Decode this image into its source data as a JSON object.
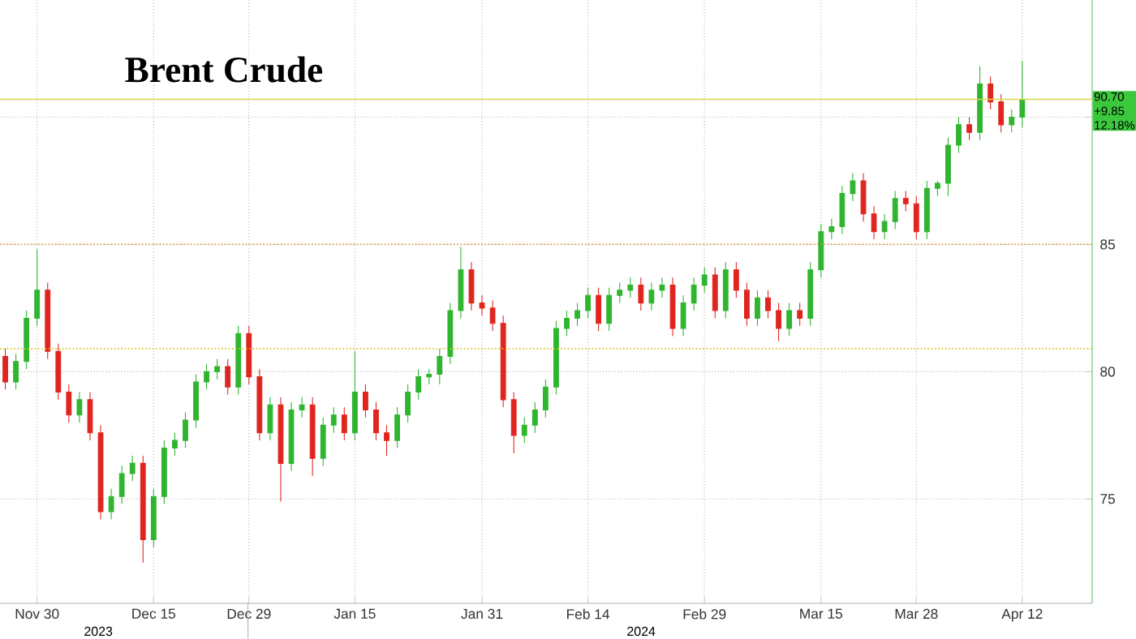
{
  "chart_data": {
    "type": "candlestick",
    "title": "Brent Crude",
    "categories": [
      null,
      null,
      null,
      "Nov 30",
      null,
      null,
      null,
      null,
      null,
      null,
      null,
      null,
      null,
      null,
      "Dec 15",
      null,
      null,
      null,
      null,
      null,
      null,
      null,
      null,
      "Dec 29",
      null,
      null,
      null,
      null,
      null,
      null,
      null,
      null,
      null,
      "Jan 15",
      null,
      null,
      null,
      null,
      null,
      null,
      null,
      null,
      null,
      null,
      null,
      "Jan 31",
      null,
      null,
      null,
      null,
      null,
      null,
      null,
      null,
      null,
      "Feb 14",
      null,
      null,
      null,
      null,
      null,
      null,
      null,
      null,
      null,
      null,
      "Feb 29",
      null,
      null,
      null,
      null,
      null,
      null,
      null,
      null,
      null,
      null,
      "Mar 15",
      null,
      null,
      null,
      null,
      null,
      null,
      null,
      null,
      "Mar 28",
      null,
      null,
      null,
      null,
      null,
      null,
      null,
      null,
      null,
      "Apr 12"
    ],
    "ohlc": [
      [
        80.6,
        80.9,
        79.3,
        79.6
      ],
      [
        79.6,
        80.7,
        79.3,
        80.4
      ],
      [
        80.4,
        82.4,
        80.1,
        82.1
      ],
      [
        82.1,
        84.8,
        81.8,
        83.2
      ],
      [
        83.2,
        83.5,
        80.5,
        80.8
      ],
      [
        80.8,
        81.1,
        78.9,
        79.2
      ],
      [
        79.2,
        79.5,
        78.0,
        78.3
      ],
      [
        78.3,
        79.2,
        78.0,
        78.9
      ],
      [
        78.9,
        79.2,
        77.3,
        77.6
      ],
      [
        77.6,
        77.9,
        74.2,
        74.5
      ],
      [
        74.5,
        75.4,
        74.2,
        75.1
      ],
      [
        75.1,
        76.3,
        74.8,
        76.0
      ],
      [
        76.0,
        76.7,
        75.7,
        76.4
      ],
      [
        76.4,
        76.7,
        72.5,
        73.4
      ],
      [
        73.4,
        75.4,
        73.1,
        75.1
      ],
      [
        75.1,
        77.3,
        74.8,
        77.0
      ],
      [
        77.0,
        77.6,
        76.7,
        77.3
      ],
      [
        77.3,
        78.4,
        77.0,
        78.1
      ],
      [
        78.1,
        79.9,
        77.8,
        79.6
      ],
      [
        79.6,
        80.3,
        79.3,
        80.0
      ],
      [
        80.0,
        80.5,
        79.7,
        80.2
      ],
      [
        80.2,
        80.5,
        79.1,
        79.4
      ],
      [
        79.4,
        81.8,
        79.1,
        81.5
      ],
      [
        81.5,
        81.8,
        79.5,
        79.8
      ],
      [
        79.8,
        80.1,
        77.3,
        77.6
      ],
      [
        77.6,
        79.0,
        77.3,
        78.7
      ],
      [
        78.7,
        79.0,
        74.9,
        76.4
      ],
      [
        76.4,
        78.8,
        76.1,
        78.5
      ],
      [
        78.5,
        79.0,
        78.2,
        78.7
      ],
      [
        78.7,
        79.0,
        75.9,
        76.6
      ],
      [
        76.6,
        78.2,
        76.3,
        77.9
      ],
      [
        77.9,
        78.6,
        77.6,
        78.3
      ],
      [
        78.3,
        78.6,
        77.3,
        77.6
      ],
      [
        77.6,
        80.8,
        77.3,
        79.2
      ],
      [
        79.2,
        79.5,
        78.2,
        78.5
      ],
      [
        78.5,
        78.8,
        77.3,
        77.6
      ],
      [
        77.6,
        77.9,
        76.7,
        77.3
      ],
      [
        77.3,
        78.6,
        77.0,
        78.3
      ],
      [
        78.3,
        79.5,
        78.0,
        79.2
      ],
      [
        79.2,
        80.1,
        78.9,
        79.8
      ],
      [
        79.8,
        80.1,
        79.5,
        79.9
      ],
      [
        79.9,
        80.9,
        79.5,
        80.6
      ],
      [
        80.6,
        82.7,
        80.3,
        82.4
      ],
      [
        82.4,
        84.9,
        82.1,
        84.0
      ],
      [
        84.0,
        84.3,
        82.4,
        82.7
      ],
      [
        82.7,
        83.0,
        82.2,
        82.5
      ],
      [
        82.5,
        82.8,
        81.6,
        81.9
      ],
      [
        81.9,
        82.2,
        78.6,
        78.9
      ],
      [
        78.9,
        79.2,
        76.8,
        77.5
      ],
      [
        77.5,
        78.2,
        77.2,
        77.9
      ],
      [
        77.9,
        78.8,
        77.6,
        78.5
      ],
      [
        78.5,
        79.7,
        78.2,
        79.4
      ],
      [
        79.4,
        82.0,
        79.1,
        81.7
      ],
      [
        81.7,
        82.4,
        81.4,
        82.1
      ],
      [
        82.1,
        82.7,
        81.8,
        82.4
      ],
      [
        82.4,
        83.3,
        82.1,
        83.0
      ],
      [
        83.0,
        83.3,
        81.6,
        81.9
      ],
      [
        81.9,
        83.3,
        81.6,
        83.0
      ],
      [
        83.0,
        83.5,
        82.7,
        83.2
      ],
      [
        83.2,
        83.7,
        82.9,
        83.4
      ],
      [
        83.4,
        83.7,
        82.4,
        82.7
      ],
      [
        82.7,
        83.5,
        82.4,
        83.2
      ],
      [
        83.2,
        83.7,
        82.9,
        83.4
      ],
      [
        83.4,
        83.7,
        81.4,
        81.7
      ],
      [
        81.7,
        83.0,
        81.4,
        82.7
      ],
      [
        82.7,
        83.7,
        82.4,
        83.4
      ],
      [
        83.4,
        84.1,
        83.1,
        83.8
      ],
      [
        83.8,
        84.1,
        82.1,
        82.4
      ],
      [
        82.4,
        84.3,
        82.1,
        84.0
      ],
      [
        84.0,
        84.3,
        82.9,
        83.2
      ],
      [
        83.2,
        83.5,
        81.8,
        82.1
      ],
      [
        82.1,
        83.2,
        81.8,
        82.9
      ],
      [
        82.9,
        83.2,
        82.1,
        82.4
      ],
      [
        82.4,
        82.7,
        81.2,
        81.7
      ],
      [
        81.7,
        82.7,
        81.4,
        82.4
      ],
      [
        82.4,
        82.7,
        81.8,
        82.1
      ],
      [
        82.1,
        84.3,
        81.8,
        84.0
      ],
      [
        84.0,
        85.8,
        83.7,
        85.5
      ],
      [
        85.5,
        86.0,
        85.2,
        85.7
      ],
      [
        85.7,
        87.3,
        85.4,
        87.0
      ],
      [
        87.0,
        87.8,
        86.7,
        87.5
      ],
      [
        87.5,
        87.8,
        85.9,
        86.2
      ],
      [
        86.2,
        86.5,
        85.2,
        85.5
      ],
      [
        85.5,
        86.2,
        85.2,
        85.9
      ],
      [
        85.9,
        87.1,
        85.6,
        86.8
      ],
      [
        86.8,
        87.1,
        86.3,
        86.6
      ],
      [
        86.6,
        86.9,
        85.2,
        85.5
      ],
      [
        85.5,
        87.5,
        85.2,
        87.2
      ],
      [
        87.2,
        87.5,
        86.9,
        87.4
      ],
      [
        87.4,
        89.2,
        86.9,
        88.9
      ],
      [
        88.9,
        90.0,
        88.6,
        89.7
      ],
      [
        89.7,
        90.0,
        89.1,
        89.4
      ],
      [
        89.4,
        92.0,
        89.1,
        91.3
      ],
      [
        91.3,
        91.6,
        90.3,
        90.6
      ],
      [
        90.6,
        90.9,
        89.4,
        89.7
      ],
      [
        89.7,
        90.3,
        89.4,
        90.0
      ],
      [
        90.0,
        92.2,
        89.6,
        90.7
      ]
    ],
    "ylim": [
      70.9,
      94.6
    ],
    "yticks": [
      75,
      80,
      85,
      {
        "value": 90,
        "label": null
      }
    ],
    "grid": true,
    "ref_lines": [
      {
        "axis": "y",
        "value": 85,
        "color": "#e69a3a",
        "line_style": "dotted"
      },
      {
        "axis": "y",
        "value": 80.9,
        "color": "#d4c41a",
        "line_style": "dotted"
      },
      {
        "axis": "y",
        "value": 90.7,
        "label": "90.70",
        "color": "#d8d84a",
        "line_style": "solid"
      }
    ],
    "annotations": [
      "+9.85",
      "12.18%",
      "2023",
      "2024"
    ]
  }
}
